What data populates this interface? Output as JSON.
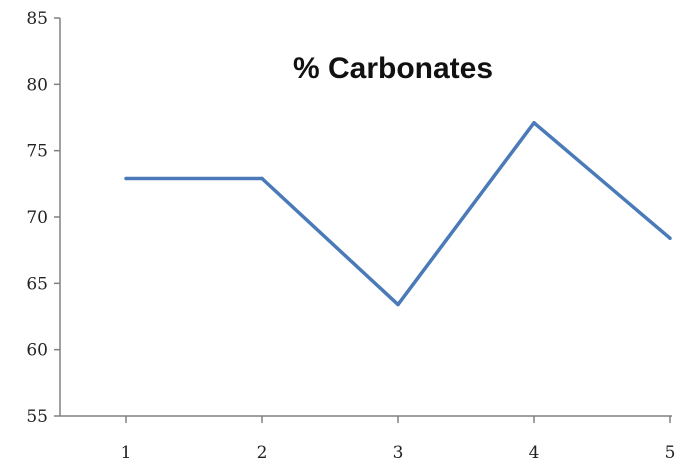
{
  "chart_data": {
    "type": "line",
    "title": "% Carbonates",
    "xlabel": "",
    "ylabel": "",
    "categories": [
      "1",
      "2",
      "3",
      "4",
      "5"
    ],
    "series": [
      {
        "values": [
          72.9,
          72.9,
          63.4,
          77.1,
          68.4
        ]
      }
    ],
    "ylim": [
      55,
      85
    ],
    "yticks": [
      "55",
      "60",
      "65",
      "70",
      "75",
      "80",
      "85"
    ],
    "grid": false,
    "legend": "none",
    "colors": {
      "line": "#4a7ab8",
      "axis": "#808080",
      "text": "#222222"
    }
  }
}
